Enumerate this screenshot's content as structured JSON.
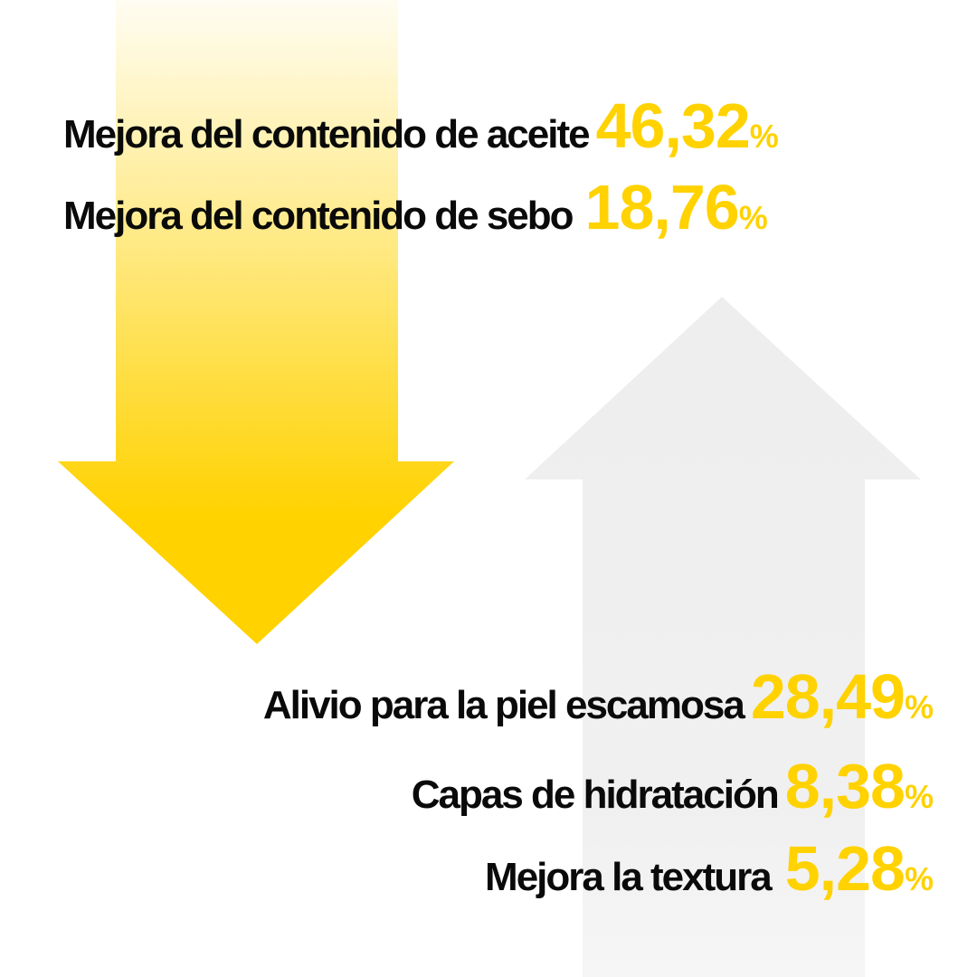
{
  "colors": {
    "background": "#ffffff",
    "accent_yellow": "#ffd200",
    "label_text": "#0a0a0a",
    "up_arrow_gray": "#eeeeee"
  },
  "decrease_arrow": {
    "icon": "down-arrow-icon",
    "color": "#ffd200"
  },
  "increase_arrow": {
    "icon": "up-arrow-icon",
    "color": "#eeeeee"
  },
  "decreases": [
    {
      "label": "Mejora del contenido de aceite",
      "value": "46,32",
      "unit": "%"
    },
    {
      "label": "Mejora del contenido de sebo",
      "value": "18,76",
      "unit": "%"
    }
  ],
  "increases": [
    {
      "label": "Alivio para la piel escamosa",
      "value": "28,49",
      "unit": "%"
    },
    {
      "label": "Capas de hidratación",
      "value": "8,38",
      "unit": "%"
    },
    {
      "label": "Mejora la textura",
      "value": "5,28",
      "unit": "%"
    }
  ]
}
